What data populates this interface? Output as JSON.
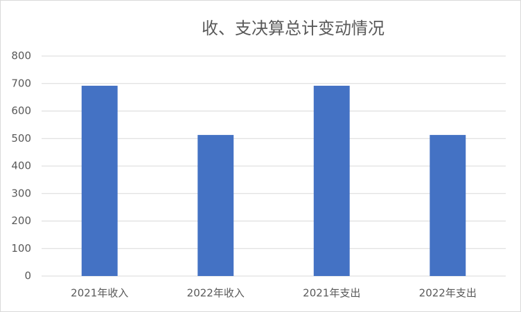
{
  "chart_data": {
    "type": "bar",
    "title": "收、支决算总计变动情况",
    "categories": [
      "2021年收入",
      "2022年收入",
      "2021年支出",
      "2022年支出"
    ],
    "values": [
      692,
      513,
      692,
      513
    ],
    "color": "#4472c4",
    "ylim": [
      0,
      800
    ],
    "yticks": [
      0,
      100,
      200,
      300,
      400,
      500,
      600,
      700,
      800
    ],
    "grid": true
  }
}
